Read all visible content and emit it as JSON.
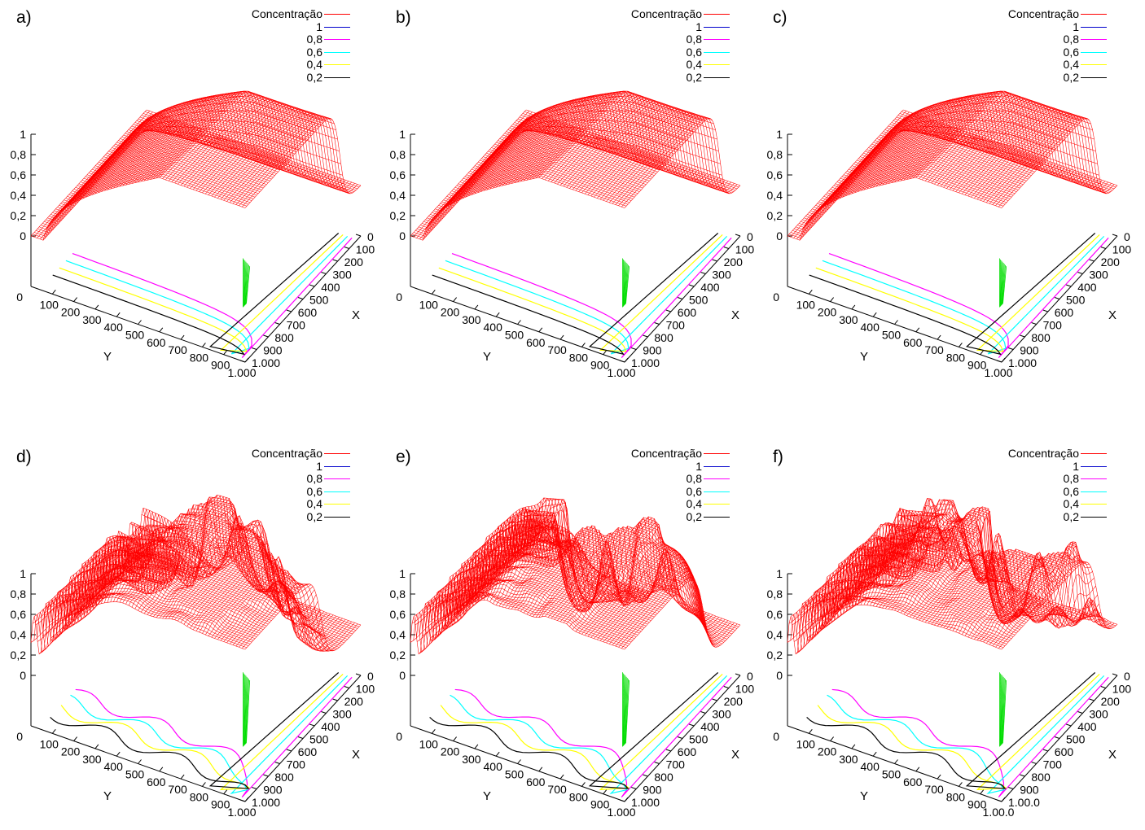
{
  "chart_data": [
    {
      "panel": "a)",
      "type": "surface",
      "surface_shape": "plateau",
      "zlabel": "",
      "xlabel": "X",
      "ylabel": "Y",
      "z_ticks": [
        "0",
        "0,2",
        "0,4",
        "0,6",
        "0,8",
        "1"
      ],
      "x_ticks": [
        "0",
        "100",
        "200",
        "300",
        "400",
        "500",
        "600",
        "700",
        "800",
        "900",
        "1.000"
      ],
      "y_ticks": [
        "100",
        "200",
        "300",
        "400",
        "500",
        "600",
        "700",
        "800",
        "900",
        "1.000"
      ],
      "y_origin_tick": "0",
      "zlim": [
        0,
        1
      ],
      "xlim": [
        0,
        1000
      ],
      "ylim": [
        0,
        1000
      ],
      "legend_position": "top-right",
      "legend": [
        {
          "label": "Concentração",
          "color": "#ff0000"
        },
        {
          "label": "1",
          "color": "#0000cc"
        },
        {
          "label": "0,8",
          "color": "#ff00ff"
        },
        {
          "label": "0,6",
          "color": "#00ffff"
        },
        {
          "label": "0,4",
          "color": "#ffff00"
        },
        {
          "label": "0,2",
          "color": "#000000"
        }
      ]
    },
    {
      "panel": "b)",
      "type": "surface",
      "surface_shape": "plateau",
      "zlabel": "",
      "xlabel": "X",
      "ylabel": "Y",
      "z_ticks": [
        "0",
        "0,2",
        "0,4",
        "0,6",
        "0,8",
        "1"
      ],
      "x_ticks": [
        "0",
        "100",
        "200",
        "300",
        "400",
        "500",
        "600",
        "700",
        "800",
        "900",
        "1.000"
      ],
      "y_ticks": [
        "100",
        "200",
        "300",
        "400",
        "500",
        "600",
        "700",
        "800",
        "900",
        "1.000"
      ],
      "y_origin_tick": "0",
      "zlim": [
        0,
        1
      ],
      "xlim": [
        0,
        1000
      ],
      "ylim": [
        0,
        1000
      ],
      "legend_position": "top-right",
      "legend": [
        {
          "label": "Concentração",
          "color": "#ff0000"
        },
        {
          "label": "1",
          "color": "#0000cc"
        },
        {
          "label": "0,8",
          "color": "#ff00ff"
        },
        {
          "label": "0,6",
          "color": "#00ffff"
        },
        {
          "label": "0,4",
          "color": "#ffff00"
        },
        {
          "label": "0,2",
          "color": "#000000"
        }
      ]
    },
    {
      "panel": "c)",
      "type": "surface",
      "surface_shape": "plateau",
      "zlabel": "",
      "xlabel": "X",
      "ylabel": "Y",
      "z_ticks": [
        "0",
        "0,2",
        "0,4",
        "0,6",
        "0,8",
        "1"
      ],
      "x_ticks": [
        "0",
        "100",
        "200",
        "300",
        "400",
        "500",
        "600",
        "700",
        "800",
        "900",
        "1.000"
      ],
      "y_ticks": [
        "100",
        "200",
        "300",
        "400",
        "500",
        "600",
        "700",
        "800",
        "900",
        "1.000"
      ],
      "y_origin_tick": "0",
      "zlim": [
        0,
        1
      ],
      "xlim": [
        0,
        1000
      ],
      "ylim": [
        0,
        1000
      ],
      "legend_position": "top-right",
      "legend": [
        {
          "label": "Concentração",
          "color": "#ff0000"
        },
        {
          "label": "1",
          "color": "#0000cc"
        },
        {
          "label": "0,8",
          "color": "#ff00ff"
        },
        {
          "label": "0,6",
          "color": "#00ffff"
        },
        {
          "label": "0,4",
          "color": "#ffff00"
        },
        {
          "label": "0,2",
          "color": "#000000"
        }
      ]
    },
    {
      "panel": "d)",
      "type": "surface",
      "surface_shape": "fingering",
      "seed": 3,
      "zlabel": "",
      "xlabel": "X",
      "ylabel": "Y",
      "z_ticks": [
        "0",
        "0,2",
        "0,4",
        "0,6",
        "0,8",
        "1"
      ],
      "x_ticks": [
        "0",
        "100",
        "200",
        "300",
        "400",
        "500",
        "600",
        "700",
        "800",
        "900",
        "1.000"
      ],
      "y_ticks": [
        "100",
        "200",
        "300",
        "400",
        "500",
        "600",
        "700",
        "800",
        "900",
        "1.000"
      ],
      "y_origin_tick": "0",
      "zlim": [
        0,
        1
      ],
      "xlim": [
        0,
        1000
      ],
      "ylim": [
        0,
        1000
      ],
      "legend_position": "top-right",
      "legend": [
        {
          "label": "Concentração",
          "color": "#ff0000"
        },
        {
          "label": "1",
          "color": "#0000cc"
        },
        {
          "label": "0,8",
          "color": "#ff00ff"
        },
        {
          "label": "0,6",
          "color": "#00ffff"
        },
        {
          "label": "0,4",
          "color": "#ffff00"
        },
        {
          "label": "0,2",
          "color": "#000000"
        }
      ]
    },
    {
      "panel": "e)",
      "type": "surface",
      "surface_shape": "fingering",
      "seed": 7,
      "zlabel": "",
      "xlabel": "X",
      "ylabel": "Y",
      "z_ticks": [
        "0",
        "0,2",
        "0,4",
        "0,6",
        "0,8",
        "1"
      ],
      "x_ticks": [
        "0",
        "100",
        "200",
        "300",
        "400",
        "500",
        "600",
        "700",
        "800",
        "900",
        "1.000"
      ],
      "y_ticks": [
        "100",
        "200",
        "300",
        "400",
        "500",
        "600",
        "700",
        "800",
        "900",
        "1.000"
      ],
      "y_origin_tick": "0",
      "zlim": [
        0,
        1
      ],
      "xlim": [
        0,
        1000
      ],
      "ylim": [
        0,
        1000
      ],
      "legend_position": "top-right",
      "legend": [
        {
          "label": "Concentração",
          "color": "#ff0000"
        },
        {
          "label": "1",
          "color": "#0000cc"
        },
        {
          "label": "0,8",
          "color": "#ff00ff"
        },
        {
          "label": "0,6",
          "color": "#00ffff"
        },
        {
          "label": "0,4",
          "color": "#ffff00"
        },
        {
          "label": "0,2",
          "color": "#000000"
        }
      ]
    },
    {
      "panel": "f)",
      "type": "surface",
      "surface_shape": "fingering",
      "seed": 11,
      "zlabel": "",
      "xlabel": "X",
      "ylabel": "Y",
      "z_ticks": [
        "0",
        "0,2",
        "0,4",
        "0,6",
        "0,8",
        "1"
      ],
      "x_ticks": [
        "0",
        "100",
        "200",
        "300",
        "400",
        "500",
        "600",
        "700",
        "800",
        "900",
        "1.00.0"
      ],
      "y_ticks": [
        "100",
        "200",
        "300",
        "400",
        "500",
        "600",
        "700",
        "800",
        "900",
        "1.00.0"
      ],
      "y_origin_tick": "0",
      "zlim": [
        0,
        1
      ],
      "xlim": [
        0,
        1000
      ],
      "ylim": [
        0,
        1000
      ],
      "legend_position": "top-right",
      "legend": [
        {
          "label": "Concentração",
          "color": "#ff0000"
        },
        {
          "label": "1",
          "color": "#0000cc"
        },
        {
          "label": "0,8",
          "color": "#ff00ff"
        },
        {
          "label": "0,6",
          "color": "#00ffff"
        },
        {
          "label": "0,4",
          "color": "#ffff00"
        },
        {
          "label": "0,2",
          "color": "#000000"
        }
      ]
    }
  ]
}
